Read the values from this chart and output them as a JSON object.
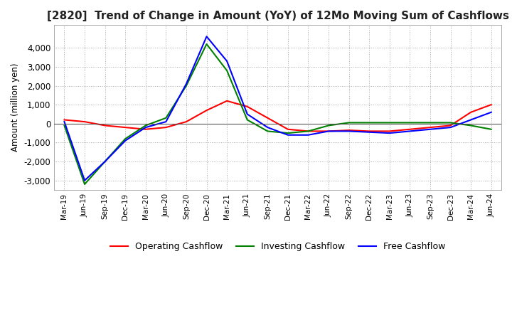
{
  "title": "[2820]  Trend of Change in Amount (YoY) of 12Mo Moving Sum of Cashflows",
  "ylabel": "Amount (million yen)",
  "x_labels": [
    "Mar-19",
    "Jun-19",
    "Sep-19",
    "Dec-19",
    "Mar-20",
    "Jun-20",
    "Sep-20",
    "Dec-20",
    "Mar-21",
    "Jun-21",
    "Sep-21",
    "Dec-21",
    "Mar-22",
    "Jun-22",
    "Sep-22",
    "Dec-22",
    "Mar-23",
    "Jun-23",
    "Sep-23",
    "Dec-23",
    "Mar-24",
    "Jun-24"
  ],
  "operating": [
    200,
    100,
    -100,
    -200,
    -300,
    -200,
    100,
    700,
    1200,
    900,
    300,
    -300,
    -400,
    -400,
    -350,
    -400,
    -400,
    -300,
    -200,
    -100,
    600,
    1000
  ],
  "investing": [
    -100,
    -3200,
    -2000,
    -800,
    -100,
    300,
    2000,
    4200,
    2800,
    200,
    -400,
    -500,
    -400,
    -100,
    50,
    50,
    50,
    50,
    50,
    50,
    -100,
    -300
  ],
  "free": [
    100,
    -3000,
    -2000,
    -900,
    -200,
    100,
    2100,
    4600,
    3300,
    500,
    -200,
    -600,
    -600,
    -400,
    -400,
    -450,
    -500,
    -400,
    -300,
    -200,
    200,
    600
  ],
  "operating_color": "#ff0000",
  "investing_color": "#008000",
  "free_color": "#0000ff",
  "ylim": [
    -3500,
    5200
  ],
  "yticks": [
    -3000,
    -2000,
    -1000,
    0,
    1000,
    2000,
    3000,
    4000
  ],
  "background_color": "#ffffff",
  "grid_color": "#aaaaaa",
  "title_fontsize": 11,
  "legend_labels": [
    "Operating Cashflow",
    "Investing Cashflow",
    "Free Cashflow"
  ]
}
